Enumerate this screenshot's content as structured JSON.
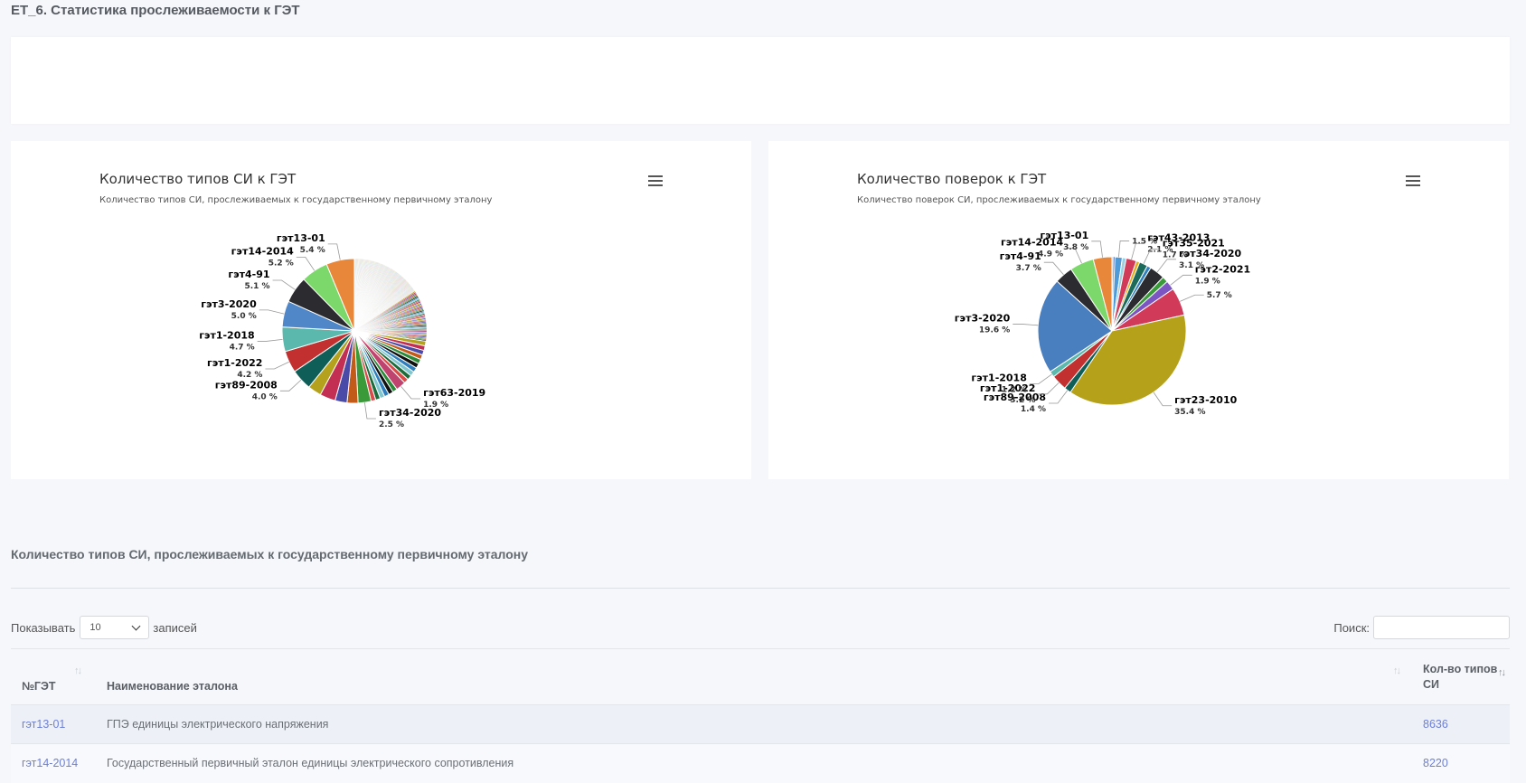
{
  "page": {
    "title": "ET_6. Статистика прослеживаемости к ГЭТ"
  },
  "charts": {
    "left": {
      "title": "Количество типов СИ к ГЭТ",
      "subtitle": "Количество типов СИ, прослеживаемых к государственному первичному эталону",
      "menu_icon": "hamburger-icon"
    },
    "right": {
      "title": "Количество поверок к ГЭТ",
      "subtitle": "Количество поверок СИ, прослеживаемых к государственному первичному эталону",
      "menu_icon": "hamburger-icon"
    }
  },
  "chart_data": [
    {
      "type": "pie",
      "title": "Количество типов СИ к ГЭТ",
      "subtitle": "Количество типов СИ, прослеживаемых к государственному первичному эталону",
      "labelled_slices": [
        {
          "name": "гэт13-01",
          "value": 5.4,
          "label": "5.4 %",
          "color": "#e8873a"
        },
        {
          "name": "гэт14-2014",
          "value": 5.2,
          "label": "5.2 %",
          "color": "#7cd86a"
        },
        {
          "name": "гэт4-91",
          "value": 5.1,
          "label": "5.1 %",
          "color": "#2b2b30"
        },
        {
          "name": "гэт3-2020",
          "value": 5.0,
          "label": "5.0 %",
          "color": "#4f87c9"
        },
        {
          "name": "гэт1-2018",
          "value": 4.7,
          "label": "4.7 %",
          "color": "#5ab9ac"
        },
        {
          "name": "гэт1-2022",
          "value": 4.2,
          "label": "4.2 %",
          "color": "#c23030"
        },
        {
          "name": "гэт89-2008",
          "value": 4.0,
          "label": "4.0 %",
          "color": "#0f5e58"
        },
        {
          "name": "гэт34-2020",
          "value": 2.5,
          "label": "2.5 %",
          "color": "#3a9a3a"
        },
        {
          "name": "гэт63-2019",
          "value": 1.9,
          "label": "1.9 %",
          "color": "#c0426e"
        }
      ],
      "unlabelled_palette": [
        "#b4a21e",
        "#c22f52",
        "#4a4aa8",
        "#c25a1a",
        "#2a8a3a",
        "#111111",
        "#2f7fbf",
        "#7fc6cf",
        "#1c6b3a",
        "#d94a4a",
        "#8c1a60",
        "#e0b020",
        "#3a5fae"
      ]
    },
    {
      "type": "pie",
      "title": "Количество поверок к ГЭТ",
      "subtitle": "Количество поверок СИ, прослеживаемых к государственному первичному эталону",
      "labelled_slices": [
        {
          "name": "гэт23-2010",
          "value": 35.4,
          "label": "35.4 %",
          "color": "#b5a21a"
        },
        {
          "name": "гэт3-2020",
          "value": 19.6,
          "label": "19.6 %",
          "color": "#4a7fbf"
        },
        {
          "name": "гэт14-2014",
          "value": 4.9,
          "label": "4.9 %",
          "color": "#7cd86a"
        },
        {
          "name": "гэт13-01",
          "value": 3.8,
          "label": "3.8 %",
          "color": "#e8873a"
        },
        {
          "name": "гэт4-91",
          "value": 3.7,
          "label": "3.7 %",
          "color": "#2b2b30"
        },
        {
          "name": "гэт1-2022",
          "value": 3.2,
          "label": "3.2 %",
          "color": "#c23030"
        },
        {
          "name": "гэт34-2020",
          "value": 3.1,
          "label": "3.1 %",
          "color": "#2b2b30"
        },
        {
          "name": "гэт43-2013",
          "value": 2.1,
          "label": "2.1 %",
          "color": "#d23a5a"
        },
        {
          "name": "гэт2-2021",
          "value": 1.9,
          "label": "1.9 %",
          "color": "#7b55c2"
        },
        {
          "name": "гэт35-2021",
          "value": 1.7,
          "label": "1.7 %",
          "color": "#1c6b5a"
        },
        {
          "name": "",
          "value": 1.5,
          "label": "1.5 %",
          "color": "#4f9ad8"
        },
        {
          "name": "гэт89-2008",
          "value": 1.4,
          "label": "1.4 %",
          "color": "#0f5e58"
        },
        {
          "name": "гэт1-2018",
          "value": 1.2,
          "label": "1.2 %",
          "color": "#5ab9ac"
        },
        {
          "name": "",
          "value": 5.7,
          "label": "5.7 %",
          "color": "#d23a5a"
        }
      ]
    }
  ],
  "table_section": {
    "title": "Количество типов СИ, прослеживаемых к государственному первичному эталону",
    "show_label": "Показывать",
    "show_value": "10",
    "records_label": "записей",
    "search_label": "Поиск:",
    "search_value": "",
    "columns": [
      "№ГЭТ",
      "Наименование эталона",
      "Кол-во типов СИ"
    ],
    "rows": [
      {
        "code": "гэт13-01",
        "name": "ГПЭ единицы электрического напряжения",
        "count": "8636"
      },
      {
        "code": "гэт14-2014",
        "name": "Государственный первичный эталон единицы электрического сопротивления",
        "count": "8220"
      }
    ]
  }
}
